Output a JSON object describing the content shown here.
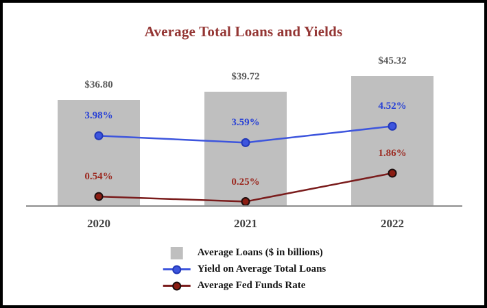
{
  "frame": {
    "background": "#ffffff",
    "border_color": "#000000"
  },
  "chart_data": {
    "type": "bar+line combo",
    "title": "Average Total Loans and Yields",
    "title_color": "#943634",
    "categories": [
      "2020",
      "2021",
      "2022"
    ],
    "series": [
      {
        "name": "Average Loans ($ in billions)",
        "type": "bar",
        "color": "#bfbfbf",
        "values": [
          36.8,
          39.72,
          45.32
        ],
        "labels": [
          "$36.80",
          "$39.72",
          "$45.32"
        ],
        "label_color": "#595959"
      },
      {
        "name": "Yield on Average Total Loans",
        "type": "line",
        "color": "#3d55dd",
        "marker_fill": "#3d55dd",
        "marker_edge": "#2238b8",
        "values": [
          3.98,
          3.59,
          4.52
        ],
        "labels": [
          "3.98%",
          "3.59%",
          "4.52%"
        ],
        "label_color": "#2841d6"
      },
      {
        "name": "Average Fed Funds Rate",
        "type": "line",
        "color": "#7a1c1c",
        "marker_fill": "#8b1d13",
        "marker_edge": "#1c0d0d",
        "values": [
          0.54,
          0.25,
          1.86
        ],
        "labels": [
          "0.54%",
          "0.25%",
          "1.86%"
        ],
        "label_color": "#9c2a21"
      }
    ],
    "legend_position": "bottom",
    "grid": false,
    "axis": {
      "baseline_color": "#8c8c8c",
      "x_label_color": "#3f3f3f",
      "bar_axis_implied_range": [
        0,
        50
      ],
      "pct_axis_implied_range": [
        0,
        5
      ]
    }
  }
}
